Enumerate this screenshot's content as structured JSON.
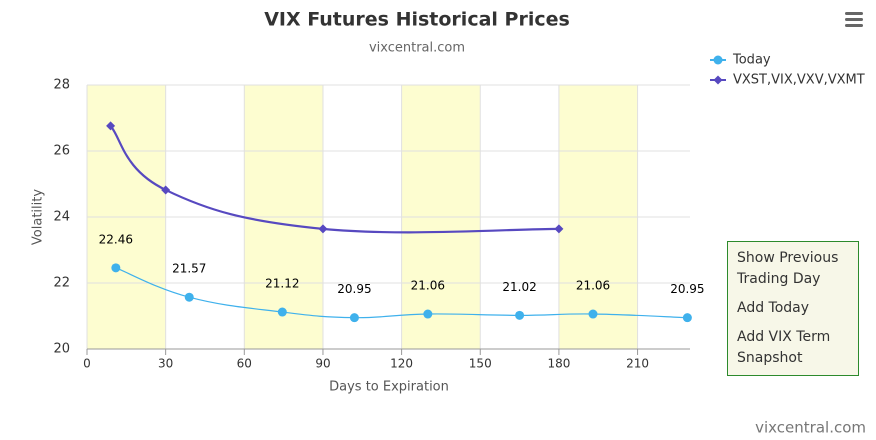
{
  "chart_data": {
    "type": "line",
    "title": "VIX Futures Historical Prices",
    "subtitle": "vixcentral.com",
    "x_label": "Days to Expiration",
    "y_label": "Volatility",
    "xlim": [
      0,
      230
    ],
    "xticks": [
      0,
      30,
      60,
      90,
      120,
      150,
      180,
      210
    ],
    "ylim": [
      20,
      28
    ],
    "yticks": [
      20,
      22,
      24,
      26,
      28
    ],
    "grid": true,
    "bands": [
      [
        0,
        30
      ],
      [
        60,
        90
      ],
      [
        120,
        150
      ],
      [
        180,
        210
      ]
    ],
    "band_color": "#fdfdd0",
    "legend": "top-right",
    "series": [
      {
        "name": "Today",
        "color": "#3fb1ec",
        "marker": "circle",
        "x": [
          11,
          39,
          74.5,
          102,
          130,
          165,
          193,
          229
        ],
        "values": [
          22.46,
          21.57,
          21.12,
          20.95,
          21.06,
          21.02,
          21.06,
          20.95
        ]
      },
      {
        "name": "VXST,VIX,VXV,VXMT",
        "color": "#5749c0",
        "marker": "diamond",
        "x": [
          9,
          30,
          90,
          180
        ],
        "values": [
          26.76,
          24.82,
          23.64,
          23.64
        ]
      }
    ],
    "buttons": [
      "Show Previous Trading Day",
      "Add Today",
      "Add VIX Term Snapshot"
    ],
    "credit": "vixcentral.com"
  }
}
